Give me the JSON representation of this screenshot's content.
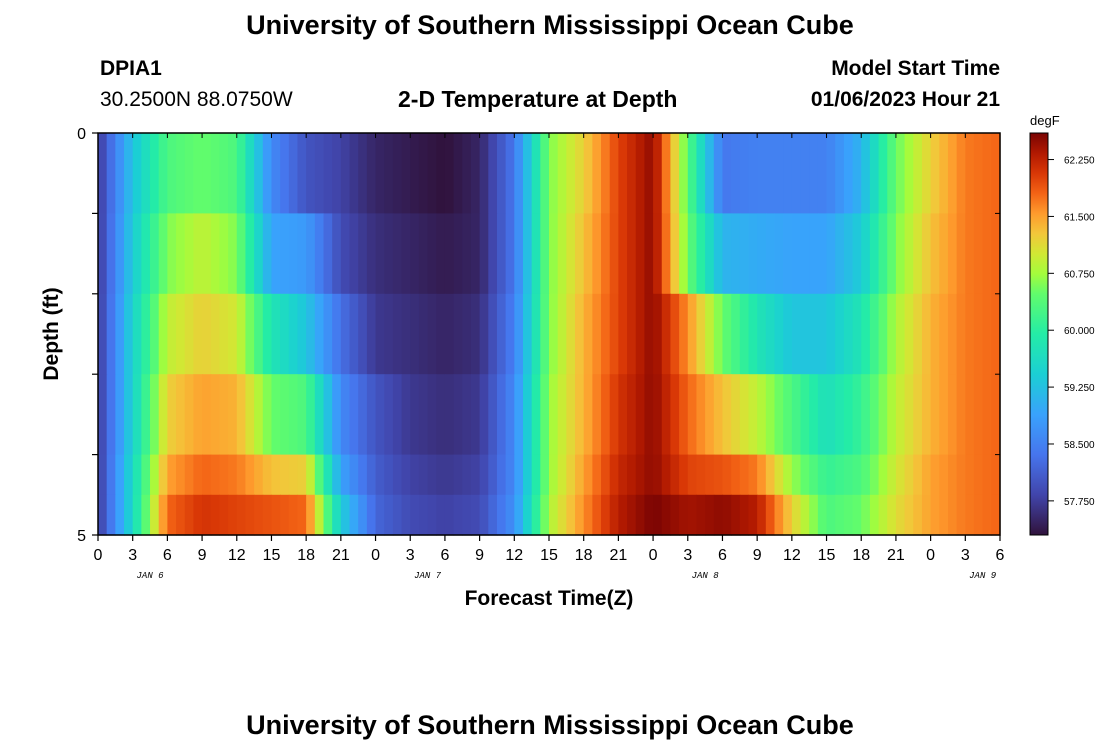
{
  "page": {
    "title_top": "University of Southern Mississippi Ocean Cube",
    "title_bottom": "University of Southern Mississippi Ocean Cube",
    "station": "DPIA1",
    "coords": "30.2500N  88.0750W",
    "heading": "2-D Temperature at Depth",
    "model_start_label": "Model Start Time",
    "model_start_value": "01/06/2023 Hour 21"
  },
  "chart_data": {
    "type": "heatmap",
    "title": "2-D Temperature at Depth",
    "xlabel": "Forecast Time(Z)",
    "ylabel": "Depth (ft)",
    "x_ticks": [
      "0",
      "3",
      "6",
      "9",
      "12",
      "15",
      "18",
      "21",
      "0",
      "3",
      "6",
      "9",
      "12",
      "15",
      "18",
      "21",
      "0",
      "3",
      "6",
      "9",
      "12",
      "15",
      "18",
      "21",
      "0",
      "3",
      "6"
    ],
    "day_labels": [
      {
        "tick_index": 1.5,
        "text": "JAN 6"
      },
      {
        "tick_index": 9.5,
        "text": "JAN 7"
      },
      {
        "tick_index": 17.5,
        "text": "JAN 8"
      },
      {
        "tick_index": 25.5,
        "text": "JAN 9"
      }
    ],
    "y_ticks": [
      "0",
      "5"
    ],
    "ylim": [
      0,
      5
    ],
    "colorbar": {
      "unit": "degF",
      "vmin": 57.3,
      "vmax": 62.6,
      "ticks": [
        "62.250",
        "61.500",
        "60.750",
        "60.000",
        "59.250",
        "58.500",
        "57.750"
      ]
    },
    "time_hours": [
      0,
      3,
      6,
      9,
      12,
      15,
      18,
      21,
      24,
      27,
      30,
      33,
      36,
      39,
      42,
      45,
      48,
      51,
      54,
      57,
      60,
      63,
      66,
      69,
      72,
      75,
      78
    ],
    "rows": [
      {
        "depth": 0.5,
        "values": [
          57.7,
          59.3,
          60.3,
          60.5,
          60.3,
          58.6,
          58.0,
          57.8,
          57.5,
          57.4,
          57.3,
          57.5,
          58.4,
          60.6,
          61.2,
          62.0,
          62.5,
          60.4,
          58.4,
          58.5,
          58.5,
          58.5,
          59.1,
          60.5,
          61.2,
          61.7,
          61.8
        ]
      },
      {
        "depth": 1.5,
        "values": [
          57.7,
          59.4,
          60.6,
          60.9,
          60.6,
          58.9,
          58.8,
          57.9,
          57.6,
          57.5,
          57.4,
          57.5,
          58.4,
          60.6,
          61.3,
          62.0,
          62.5,
          60.5,
          59.1,
          59.0,
          58.9,
          58.9,
          59.4,
          60.6,
          61.3,
          61.7,
          61.8
        ]
      },
      {
        "depth": 2.5,
        "values": [
          57.7,
          59.5,
          60.9,
          61.2,
          61.0,
          59.8,
          59.3,
          58.3,
          57.7,
          57.6,
          57.5,
          57.6,
          58.5,
          60.6,
          61.4,
          62.0,
          62.5,
          61.6,
          60.5,
          59.8,
          59.3,
          59.3,
          59.8,
          60.8,
          61.4,
          61.7,
          61.8
        ]
      },
      {
        "depth": 3.5,
        "values": [
          57.7,
          59.5,
          61.2,
          61.5,
          61.4,
          60.5,
          60.3,
          58.6,
          58.0,
          57.7,
          57.6,
          57.7,
          58.6,
          60.7,
          61.4,
          62.1,
          62.5,
          61.8,
          61.3,
          60.9,
          60.3,
          59.7,
          60.1,
          60.9,
          61.4,
          61.7,
          61.8
        ]
      },
      {
        "depth": 4.5,
        "values": [
          57.7,
          59.6,
          61.5,
          61.8,
          61.7,
          61.3,
          61.2,
          58.9,
          58.1,
          57.8,
          57.7,
          57.8,
          58.6,
          60.7,
          61.5,
          62.2,
          62.5,
          62.0,
          61.9,
          61.7,
          60.7,
          60.1,
          60.3,
          61.0,
          61.5,
          61.7,
          61.8
        ]
      },
      {
        "depth": 5.0,
        "values": [
          57.7,
          59.6,
          61.8,
          62.1,
          62.0,
          61.9,
          61.8,
          59.4,
          58.2,
          57.9,
          57.8,
          57.9,
          58.7,
          60.8,
          61.6,
          62.3,
          62.6,
          62.4,
          62.5,
          62.3,
          61.2,
          60.3,
          60.5,
          61.1,
          61.5,
          61.7,
          61.8
        ]
      }
    ]
  }
}
